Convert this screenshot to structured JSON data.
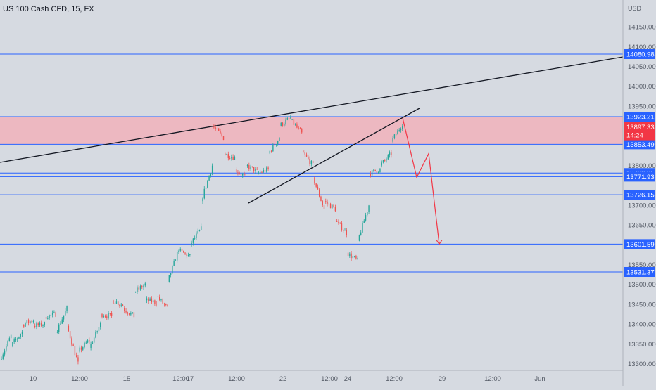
{
  "header": {
    "symbol": "US 100 Cash CFD, 15, FX"
  },
  "currency": "USD",
  "colors": {
    "background": "#d6dae1",
    "level_line": "#2962ff",
    "trend_line": "#131722",
    "projection": "#f23645",
    "zone_fill": "#f7a9b4",
    "candle_up": "#26a69a",
    "candle_down": "#ef5350",
    "current_price_tag": "#f23645"
  },
  "chart_data": {
    "type": "candlestick",
    "ylim": [
      13280,
      14200
    ],
    "y_ticks": [
      14150,
      14100,
      14050,
      14000,
      13950,
      13800,
      13700,
      13650,
      13550,
      13500,
      13450,
      13400,
      13350,
      13300
    ],
    "x_ticks": [
      "10",
      "12:00",
      "15",
      "12:00",
      "17",
      "12:00",
      "22",
      "12:00",
      "24",
      "12:00",
      "29",
      "12:00",
      "Jun"
    ],
    "horizontal_levels": [
      14080.98,
      13923.21,
      13853.49,
      13780.95,
      13771.93,
      13726.15,
      13601.59,
      13531.37
    ],
    "resistance_zone": [
      13853.49,
      13923.21
    ],
    "current_price": {
      "value": "13897.33",
      "countdown": "14:24"
    },
    "price_path": [
      [
        13290,
        13310
      ],
      [
        13370,
        13345
      ],
      [
        13380,
        13398
      ],
      [
        13410,
        13395
      ],
      [
        13400,
        13418
      ],
      [
        13425,
        13378
      ],
      [
        13440,
        13395
      ],
      [
        13300,
        13330
      ],
      [
        13360,
        13340
      ],
      [
        13400,
        13425
      ],
      [
        13420,
        13460
      ],
      [
        13448,
        13440
      ],
      [
        13420,
        13480
      ],
      [
        13500,
        13460
      ],
      [
        13455,
        13470
      ],
      [
        13440,
        13505
      ],
      [
        13590,
        13585
      ],
      [
        13570,
        13600
      ],
      [
        13640,
        13710
      ],
      [
        13800,
        13900
      ],
      [
        13870,
        13830
      ],
      [
        13820,
        13790
      ],
      [
        13770,
        13800
      ],
      [
        13785,
        13780
      ],
      [
        13790,
        13830
      ],
      [
        13870,
        13900
      ],
      [
        13920,
        13915
      ],
      [
        13880,
        13835
      ],
      [
        13800,
        13770
      ],
      [
        13690,
        13710
      ],
      [
        13690,
        13660
      ],
      [
        13630,
        13580
      ],
      [
        13560,
        13610
      ],
      [
        13700,
        13780
      ],
      [
        13790,
        13800
      ],
      [
        13830,
        13860
      ],
      [
        13905,
        13897
      ]
    ],
    "trend_lines": [
      {
        "from": [
          "2020-05-13T23:00",
          13800
        ],
        "to": [
          "2020-06-01T23:00",
          14080
        ]
      },
      {
        "from": [
          "2020-05-21T11:00",
          13710
        ],
        "to": [
          "2020-05-28T12:00",
          13945
        ]
      }
    ],
    "projection_path": [
      13920,
      13770,
      13830,
      13601.59
    ]
  }
}
